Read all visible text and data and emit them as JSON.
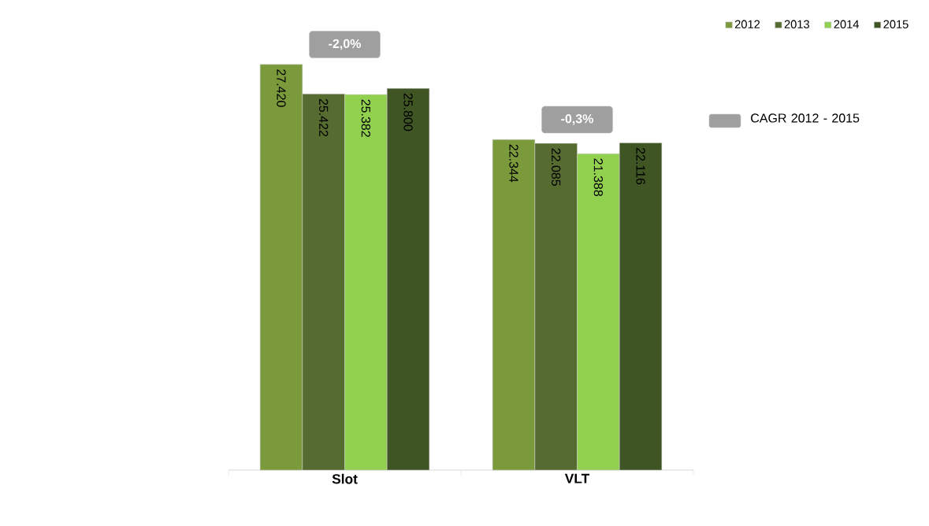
{
  "chart_data": {
    "type": "bar",
    "categories": [
      "Slot",
      "VLT"
    ],
    "series": [
      {
        "name": "2012",
        "color": "#7a9a3c",
        "values": [
          27420,
          22344
        ],
        "value_labels": [
          "27.420",
          "22.344"
        ]
      },
      {
        "name": "2013",
        "color": "#566b2f",
        "values": [
          25422,
          22085
        ],
        "value_labels": [
          "25.422",
          "22.085"
        ]
      },
      {
        "name": "2014",
        "color": "#92d050",
        "values": [
          25382,
          21388
        ],
        "value_labels": [
          "25.382",
          "21.388"
        ]
      },
      {
        "name": "2015",
        "color": "#3f5524",
        "values": [
          25800,
          22116
        ],
        "value_labels": [
          "25.800",
          "22.116"
        ]
      }
    ],
    "annotations": [
      "-2,0%",
      "-0,3%",
      "CAGR 2012 - 2015"
    ],
    "legend": "top right"
  }
}
